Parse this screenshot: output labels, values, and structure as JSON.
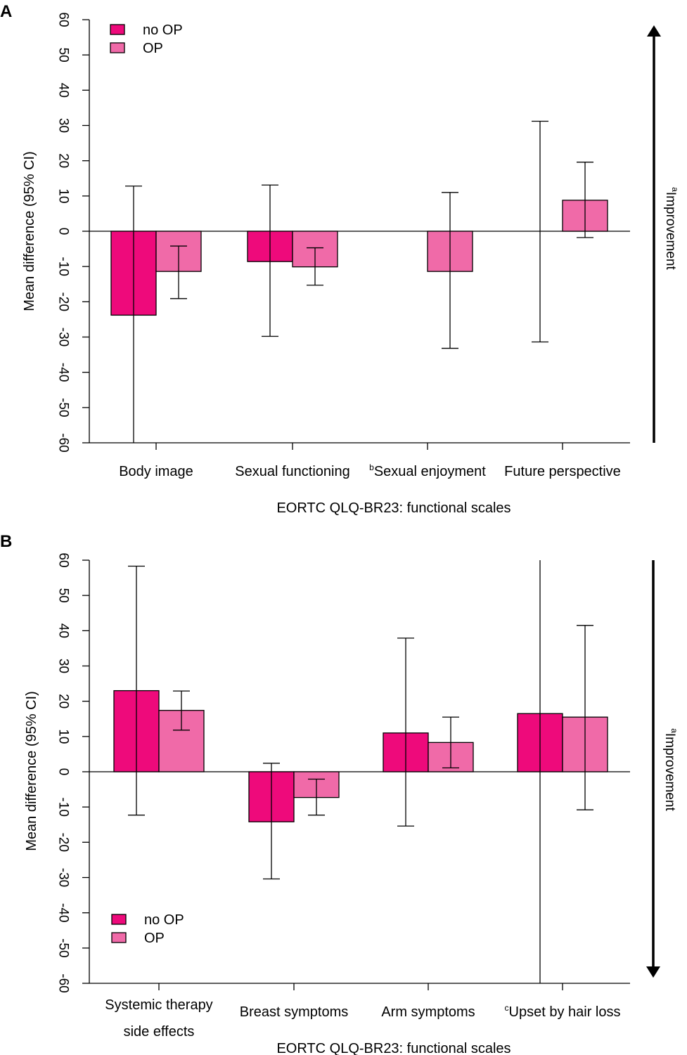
{
  "chart_data": [
    {
      "panel": "A",
      "type": "bar",
      "xlabel": "EORTC QLQ-BR23: functional scales",
      "ylabel": "Mean difference (95% CI)",
      "arrow_label": "Improvement",
      "arrow_label_sup": "a",
      "arrow_direction": "up",
      "ylim": [
        -60,
        60
      ],
      "yticks": [
        -60,
        -50,
        -40,
        -30,
        -20,
        -10,
        0,
        10,
        20,
        30,
        40,
        50,
        60
      ],
      "legend_position": "top-left",
      "categories": [
        {
          "sup": "",
          "lines": [
            "Body image"
          ]
        },
        {
          "sup": "",
          "lines": [
            "Sexual functioning"
          ]
        },
        {
          "sup": "b",
          "lines": [
            "Sexual enjoyment"
          ]
        },
        {
          "sup": "",
          "lines": [
            "Future perspective"
          ]
        }
      ],
      "series": [
        {
          "name": "no OP",
          "color": "#EE0A7B",
          "values": [
            -23.8,
            -8.6,
            null,
            null
          ],
          "ci_low": [
            -60,
            -29.8,
            null,
            -31.4
          ],
          "ci_high": [
            12.8,
            13.1,
            null,
            31.2
          ],
          "ci_center": [
            -23.8,
            -8.6,
            null,
            0
          ]
        },
        {
          "name": "OP",
          "color": "#F06AA8",
          "values": [
            -11.4,
            -10.1,
            -11.4,
            8.8
          ],
          "ci_low": [
            -19.1,
            -15.3,
            -33.2,
            -1.8
          ],
          "ci_high": [
            -4.2,
            -4.7,
            11.0,
            19.6
          ],
          "ci_center": [
            -11.4,
            -10.1,
            -11.4,
            8.8
          ]
        }
      ]
    },
    {
      "panel": "B",
      "type": "bar",
      "xlabel": "EORTC QLQ-BR23: functional scales",
      "ylabel": "Mean difference (95% CI)",
      "arrow_label": "Improvement",
      "arrow_label_sup": "a",
      "arrow_direction": "down",
      "ylim": [
        -60,
        60
      ],
      "yticks": [
        -60,
        -50,
        -40,
        -30,
        -20,
        -10,
        0,
        10,
        20,
        30,
        40,
        50,
        60
      ],
      "legend_position": "bottom-left",
      "categories": [
        {
          "sup": "",
          "lines": [
            "Systemic therapy",
            "side effects"
          ]
        },
        {
          "sup": "",
          "lines": [
            "Breast symptoms"
          ]
        },
        {
          "sup": "",
          "lines": [
            "Arm symptoms"
          ]
        },
        {
          "sup": "c",
          "lines": [
            "Upset by hair loss"
          ]
        }
      ],
      "series": [
        {
          "name": "no OP",
          "color": "#EE0A7B",
          "values": [
            23.0,
            -14.2,
            11.0,
            16.5
          ],
          "ci_low": [
            -12.3,
            -30.4,
            -15.4,
            -60
          ],
          "ci_high": [
            58.3,
            2.4,
            37.9,
            60
          ],
          "ci_center": [
            23.0,
            -14.2,
            11.0,
            16.5
          ]
        },
        {
          "name": "OP",
          "color": "#F06AA8",
          "values": [
            17.4,
            -7.3,
            8.3,
            15.5
          ],
          "ci_low": [
            11.8,
            -12.3,
            1.1,
            -10.8
          ],
          "ci_high": [
            22.9,
            -2.1,
            15.5,
            41.5
          ],
          "ci_center": [
            17.4,
            -7.3,
            8.3,
            15.5
          ]
        }
      ]
    }
  ]
}
